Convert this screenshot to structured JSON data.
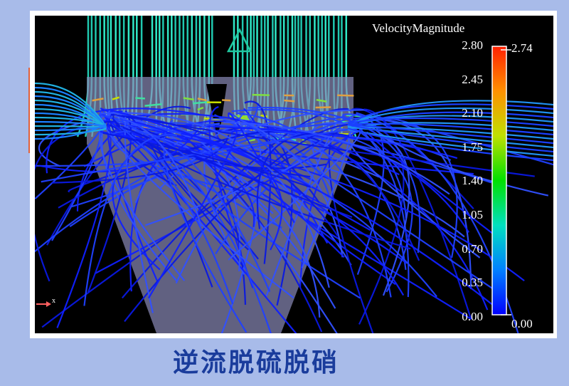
{
  "legend": {
    "title": "VelocityMagnitude",
    "ticks": [
      "2.80",
      "2.45",
      "2.10",
      "1.75",
      "1.40",
      "1.05",
      "0.70",
      "0.35",
      "0.00"
    ],
    "max_marker": "2.74",
    "min_marker": "0.00",
    "colormap": [
      "#0000ff",
      "#0080ff",
      "#00e0c0",
      "#00e000",
      "#c0e000",
      "#ff9000",
      "#ff2000"
    ]
  },
  "axis_indicator": {
    "label": "x",
    "color": "#ff6060"
  },
  "caption": "逆流脱硫脱硝",
  "colors": {
    "background": "#a8bbe9",
    "caption": "#1a3c9c",
    "funnel": "#8a8ab8"
  }
}
